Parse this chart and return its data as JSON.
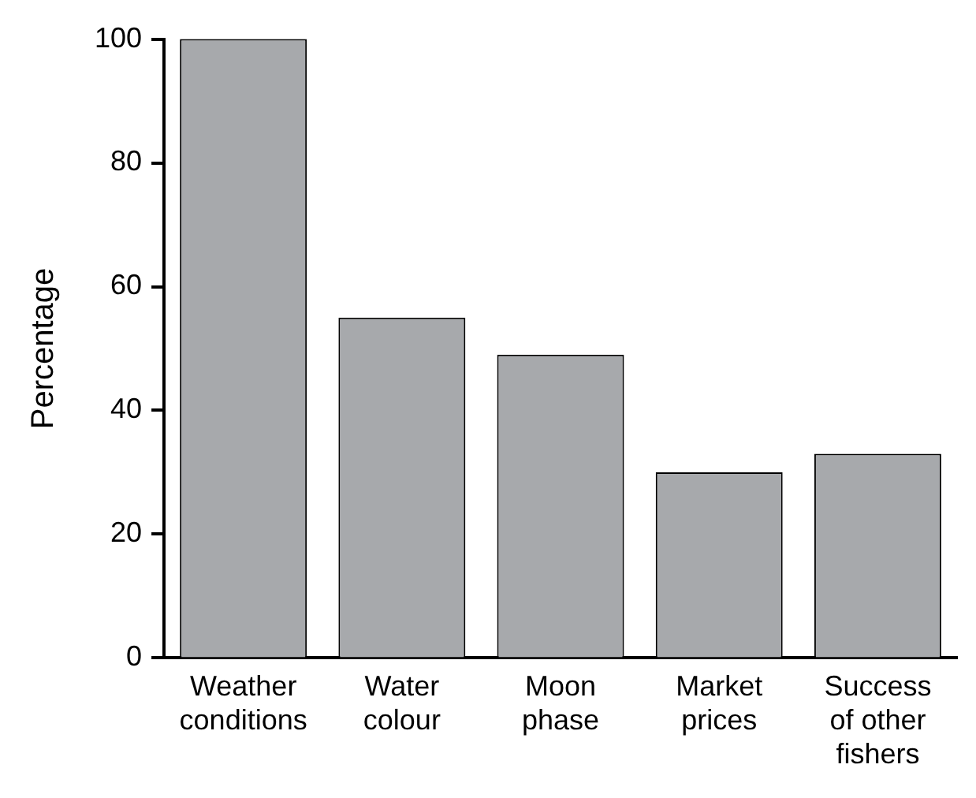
{
  "chart_data": {
    "type": "bar",
    "ylabel": "Percentage",
    "categories": [
      "Weather conditions",
      "Water colour",
      "Moon phase",
      "Market prices",
      "Success of other fishers"
    ],
    "values": [
      100,
      55,
      49,
      30,
      33
    ],
    "color": "#a7a9ac",
    "ylim": [
      0,
      100
    ],
    "yticks": [
      0,
      20,
      40,
      60,
      80,
      100
    ],
    "grid": false,
    "legend": false
  }
}
